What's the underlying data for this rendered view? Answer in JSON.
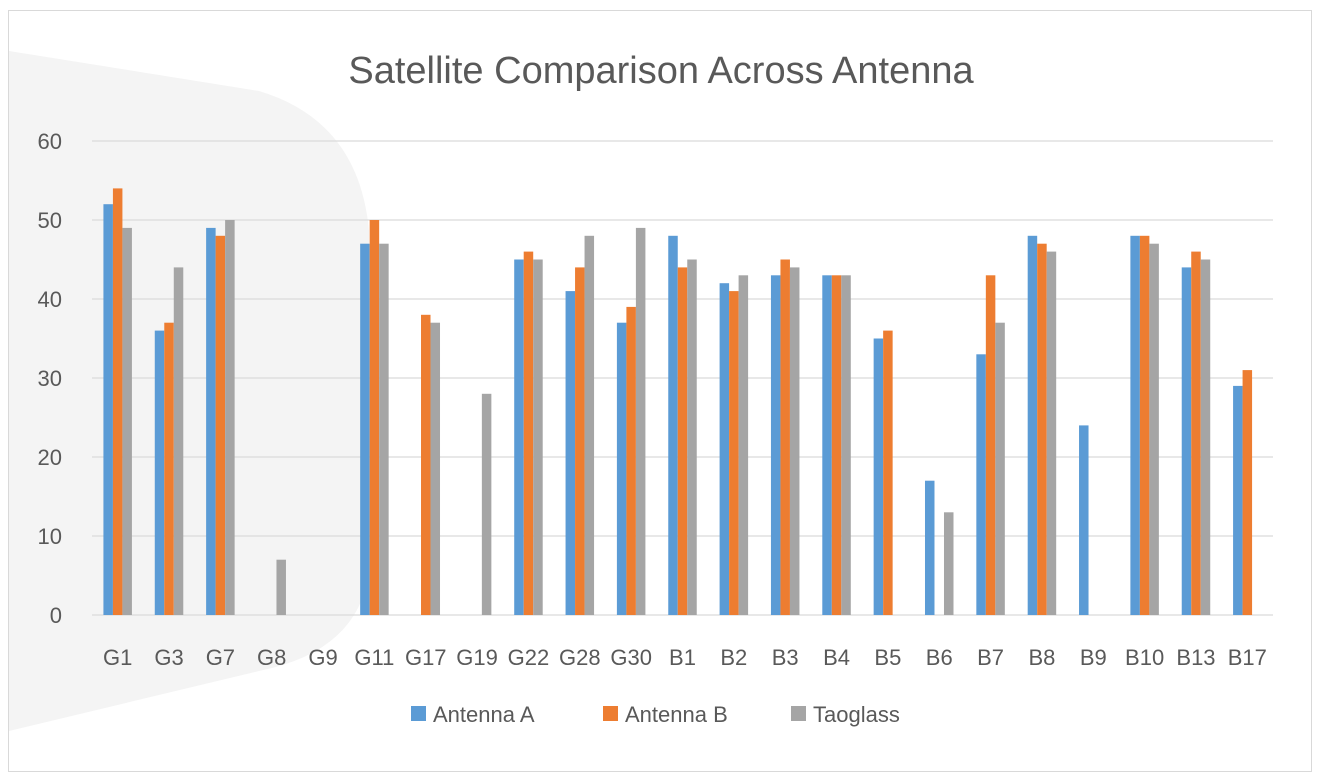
{
  "chart_data": {
    "type": "bar",
    "title": "Satellite Comparison Across Antenna",
    "xlabel": "",
    "ylabel": "",
    "ylim": [
      0,
      60
    ],
    "yticks": [
      0,
      10,
      20,
      30,
      40,
      50,
      60
    ],
    "grid": true,
    "legend_position": "bottom",
    "categories": [
      "G1",
      "G3",
      "G7",
      "G8",
      "G9",
      "G11",
      "G17",
      "G19",
      "G22",
      "G28",
      "G30",
      "B1",
      "B2",
      "B3",
      "B4",
      "B5",
      "B6",
      "B7",
      "B8",
      "B9",
      "B10",
      "B13",
      "B17"
    ],
    "series": [
      {
        "name": "Antenna A",
        "color": "#5b9bd5",
        "values": [
          52,
          36,
          49,
          0,
          0,
          47,
          0,
          0,
          45,
          41,
          37,
          48,
          42,
          43,
          43,
          35,
          17,
          33,
          48,
          24,
          48,
          44,
          29
        ]
      },
      {
        "name": "Antenna B",
        "color": "#ed7d31",
        "values": [
          54,
          37,
          48,
          0,
          0,
          50,
          38,
          0,
          46,
          44,
          39,
          44,
          41,
          45,
          43,
          36,
          0,
          43,
          47,
          0,
          48,
          46,
          31
        ]
      },
      {
        "name": "Taoglass",
        "color": "#a5a5a5",
        "values": [
          49,
          44,
          50,
          7,
          0,
          47,
          37,
          28,
          45,
          48,
          49,
          45,
          43,
          44,
          43,
          0,
          13,
          37,
          46,
          0,
          47,
          45,
          0
        ]
      }
    ]
  }
}
